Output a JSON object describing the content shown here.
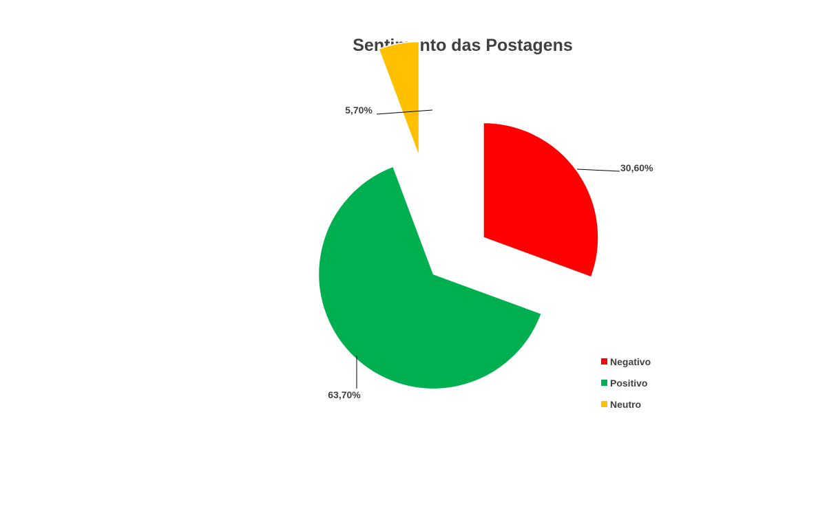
{
  "chart_data": {
    "type": "pie",
    "title": "Sentimento das Postagens",
    "categories": [
      "Negativo",
      "Positivo",
      "Neutro"
    ],
    "values": [
      30.6,
      63.7,
      5.7
    ],
    "data_labels": [
      "30,60%",
      "63,70%",
      "5,70%"
    ],
    "colors": [
      "#FF0000",
      "#00B050",
      "#FFC000"
    ],
    "exploded": true,
    "legend_position": "right",
    "start_angle_deg": 0,
    "direction": "clockwise"
  }
}
